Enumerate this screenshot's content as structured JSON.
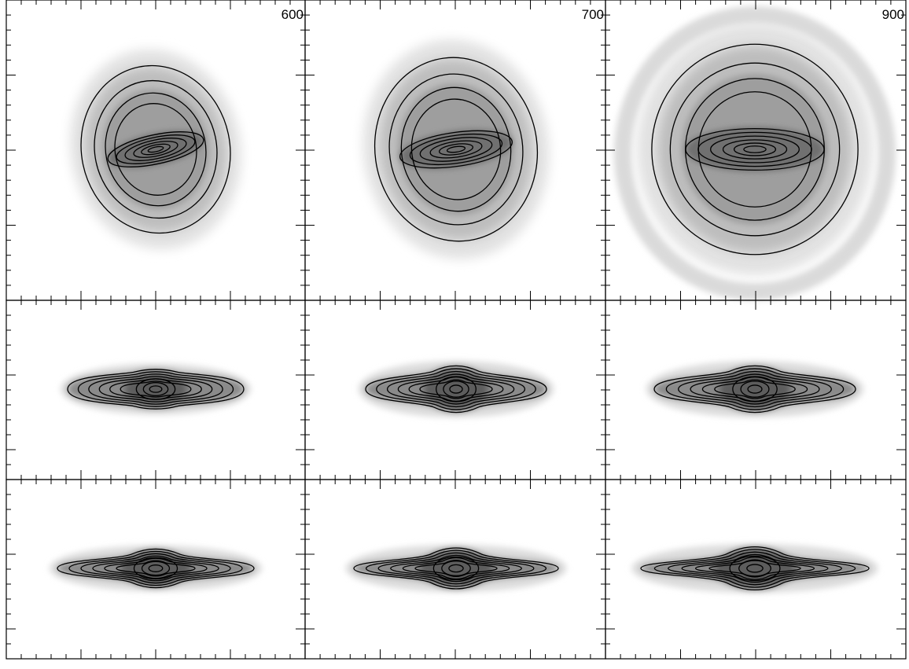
{
  "panels": [
    {
      "label": "600"
    },
    {
      "label": "700"
    },
    {
      "label": "900"
    }
  ]
}
